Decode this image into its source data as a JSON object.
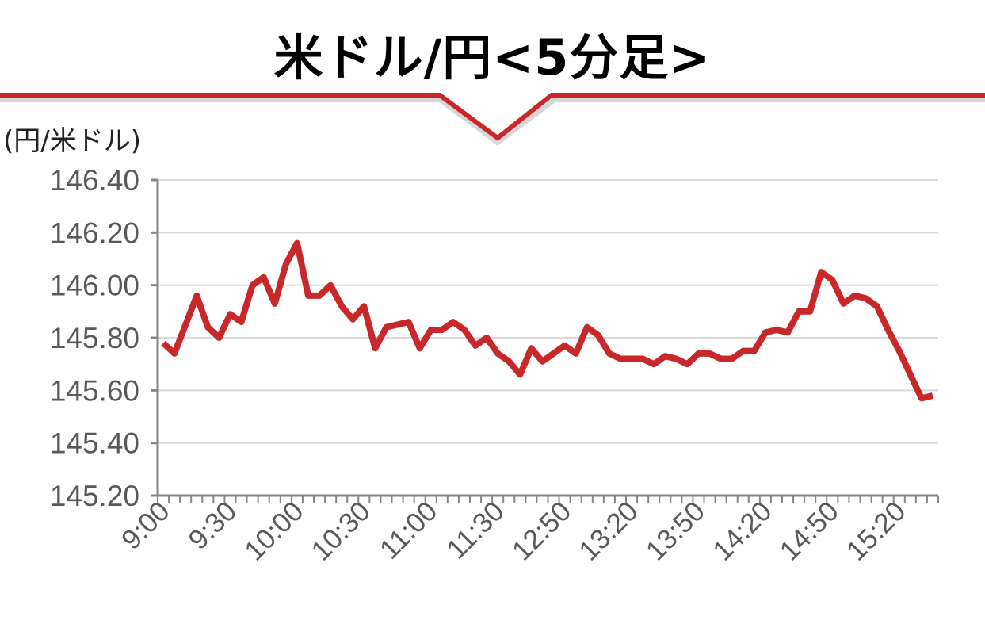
{
  "header": {
    "title": "米ドル/円<5分足>",
    "accent_color": "#c8282a"
  },
  "chart_data": {
    "type": "line",
    "title": "米ドル/円<5分足>",
    "ylabel": "(円/米ドル)",
    "xlabel": "",
    "ylim": [
      145.2,
      146.4
    ],
    "yticks": [
      "146.40",
      "146.20",
      "146.00",
      "145.80",
      "145.60",
      "145.40",
      "145.20"
    ],
    "ytick_values": [
      146.4,
      146.2,
      146.0,
      145.8,
      145.6,
      145.4,
      145.2
    ],
    "xtick_labels": [
      "9:00",
      "9:30",
      "10:00",
      "10:30",
      "11:00",
      "11:30",
      "12:50",
      "13:20",
      "13:50",
      "14:20",
      "14:50",
      "15:20"
    ],
    "xtick_every": 6,
    "grid": true,
    "line_color": "#c8282a",
    "series": [
      {
        "values": [
          145.78,
          145.74,
          145.85,
          145.96,
          145.84,
          145.8,
          145.89,
          145.86,
          146.0,
          146.03,
          145.93,
          146.08,
          146.16,
          145.96,
          145.96,
          146.0,
          145.92,
          145.87,
          145.92,
          145.76,
          145.84,
          145.85,
          145.86,
          145.76,
          145.83,
          145.83,
          145.86,
          145.83,
          145.77,
          145.8,
          145.74,
          145.71,
          145.66,
          145.76,
          145.71,
          145.74,
          145.77,
          145.74,
          145.84,
          145.81,
          145.74,
          145.72,
          145.72,
          145.72,
          145.7,
          145.73,
          145.72,
          145.7,
          145.74,
          145.74,
          145.72,
          145.72,
          145.75,
          145.75,
          145.82,
          145.83,
          145.82,
          145.9,
          145.9,
          146.05,
          146.02,
          145.93,
          145.96,
          145.95,
          145.92,
          145.83,
          145.75,
          145.66,
          145.57,
          145.58
        ]
      }
    ]
  }
}
